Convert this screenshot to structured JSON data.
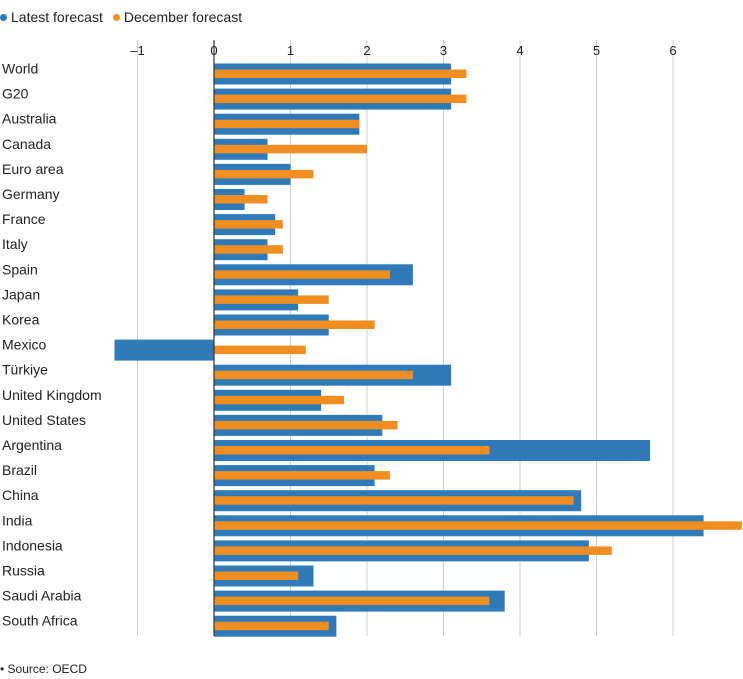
{
  "legend": {
    "latest_label": "Latest forecast",
    "december_label": "December forecast"
  },
  "source": "• Source: OECD",
  "colors": {
    "latest": "#2f7bb9",
    "december": "#f08e22",
    "grid": "#d0d0d0",
    "axis": "#333333"
  },
  "chart_data": {
    "type": "bar",
    "orientation": "horizontal",
    "title": "",
    "xlabel": "",
    "ylabel": "",
    "xlim": [
      -1.3,
      6.9
    ],
    "x_ticks": [
      -1,
      0,
      1,
      2,
      3,
      4,
      5,
      6
    ],
    "x_tick_labels": [
      "–1",
      "0",
      "1",
      "2",
      "3",
      "4",
      "5",
      "6"
    ],
    "grid": true,
    "legend_position": "top-left",
    "categories": [
      "World",
      "G20",
      "Australia",
      "Canada",
      "Euro area",
      "Germany",
      "France",
      "Italy",
      "Spain",
      "Japan",
      "Korea",
      "Mexico",
      "Türkiye",
      "United Kingdom",
      "United States",
      "Argentina",
      "Brazil",
      "China",
      "India",
      "Indonesia",
      "Russia",
      "Saudi Arabia",
      "South Africa"
    ],
    "series": [
      {
        "name": "Latest forecast",
        "values": [
          3.1,
          3.1,
          1.9,
          0.7,
          1.0,
          0.4,
          0.8,
          0.7,
          2.6,
          1.1,
          1.5,
          -1.3,
          3.1,
          1.4,
          2.2,
          5.7,
          2.1,
          4.8,
          6.4,
          4.9,
          1.3,
          3.8,
          1.6
        ]
      },
      {
        "name": "December forecast",
        "values": [
          3.3,
          3.3,
          1.9,
          2.0,
          1.3,
          0.7,
          0.9,
          0.9,
          2.3,
          1.5,
          2.1,
          1.2,
          2.6,
          1.7,
          2.4,
          3.6,
          2.3,
          4.7,
          6.9,
          5.2,
          1.1,
          3.6,
          1.5
        ]
      }
    ]
  }
}
